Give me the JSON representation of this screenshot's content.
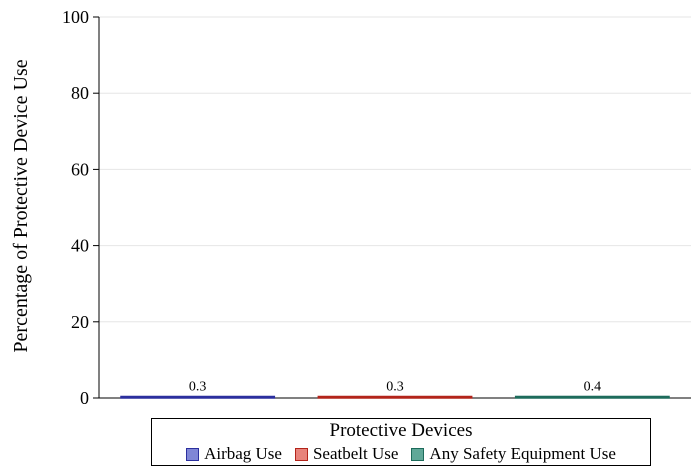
{
  "chart_data": {
    "type": "bar",
    "title": "",
    "xlabel": "",
    "ylabel": "Percentage of Protective Device Use",
    "ylim": [
      0,
      100
    ],
    "yticks": [
      "0",
      "20",
      "40",
      "60",
      "80",
      "100"
    ],
    "grid": true,
    "legend_title": "Protective Devices",
    "legend_position": "bottom",
    "series": [
      {
        "name": "Airbag Use",
        "value": 0.3,
        "label": "0.3",
        "fill": "#7f86d6",
        "stroke": "#2b2f9e"
      },
      {
        "name": "Seatbelt Use",
        "value": 0.3,
        "label": "0.3",
        "fill": "#e8837b",
        "stroke": "#b3241a"
      },
      {
        "name": "Any Safety Equipment Use",
        "value": 0.4,
        "label": "0.4",
        "fill": "#5fa898",
        "stroke": "#1d6b5b"
      }
    ]
  }
}
